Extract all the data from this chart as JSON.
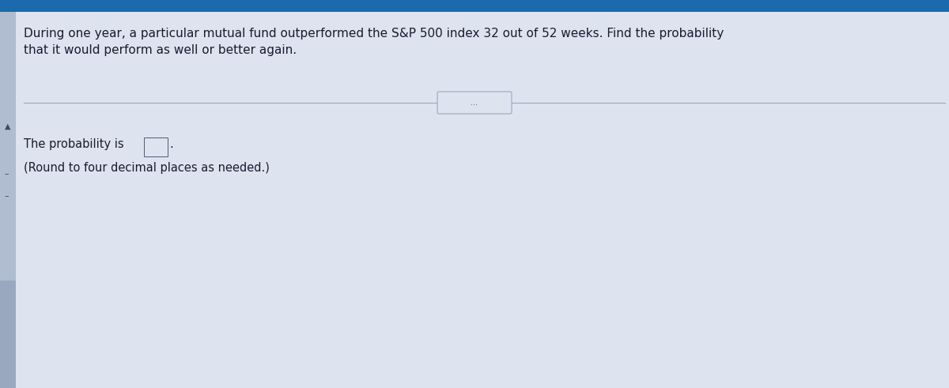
{
  "background_color": "#cdd5e8",
  "main_bg_color": "#dde4f0",
  "left_bar_color": "#b0bdd0",
  "top_bar_color": "#1a6aad",
  "question_text": "During one year, a particular mutual fund outperformed the S&P 500 index 32 out of 52 weeks. Find the probability\nthat it would perform as well or better again.",
  "answer_line1": "The probability is",
  "answer_line2": "(Round to four decimal places as needed.)",
  "divider_button_text": "...",
  "text_color": "#1a1a2e",
  "font_size_question": 11.0,
  "font_size_answer": 10.5
}
